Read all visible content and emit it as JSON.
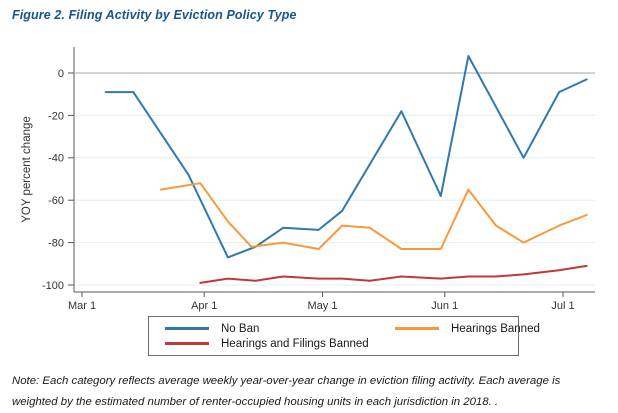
{
  "figure": {
    "title": "Figure 2. Filing Activity by Eviction Policy Type",
    "note": "Note: Each category reflects average weekly year-over-year change in eviction filing activity. Each average is weighted by the estimated number of renter-occupied housing units in each jurisdiction in 2018. ."
  },
  "chart_data": {
    "type": "line",
    "title": "Figure 2. Filing Activity by Eviction Policy Type",
    "xlabel": "",
    "ylabel": "YOY percent change",
    "ylim": [
      -100,
      10
    ],
    "grid": true,
    "legend_position": "bottom",
    "title_color": "#16558f",
    "colors": {
      "gridline": "#e3edf0",
      "zero_line": "#a6a6a6",
      "axis": "#5a5a5a",
      "tick_text": "#333333"
    },
    "yticks": [
      0,
      -20,
      -40,
      -60,
      -80,
      -100
    ],
    "xticks": [
      {
        "label": "Mar 1",
        "day": 0
      },
      {
        "label": "Apr 1",
        "day": 31
      },
      {
        "label": "May 1",
        "day": 61
      },
      {
        "label": "Jun 1",
        "day": 92
      },
      {
        "label": "Jul 1",
        "day": 122
      }
    ],
    "series": [
      {
        "name": "No Ban",
        "color": "#3178b0",
        "points": [
          {
            "date": "Mar 7",
            "day": 6,
            "value": -9
          },
          {
            "date": "Mar 14",
            "day": 13,
            "value": -9
          },
          {
            "date": "Mar 28",
            "day": 27,
            "value": -48
          },
          {
            "date": "Apr 7",
            "day": 37,
            "value": -87
          },
          {
            "date": "Apr 14",
            "day": 44,
            "value": -82
          },
          {
            "date": "Apr 21",
            "day": 51,
            "value": -73
          },
          {
            "date": "Apr 30",
            "day": 60,
            "value": -74
          },
          {
            "date": "May 6",
            "day": 66,
            "value": -65
          },
          {
            "date": "May 21",
            "day": 81,
            "value": -18
          },
          {
            "date": "May 31",
            "day": 91,
            "value": -58
          },
          {
            "date": "Jun 7",
            "day": 98,
            "value": 8
          },
          {
            "date": "Jun 21",
            "day": 112,
            "value": -40
          },
          {
            "date": "Jun 30",
            "day": 121,
            "value": -9
          },
          {
            "date": "Jul 7",
            "day": 128,
            "value": -3
          }
        ]
      },
      {
        "name": "Hearings Banned",
        "color": "#f8993a",
        "points": [
          {
            "date": "Mar 21",
            "day": 20,
            "value": -55
          },
          {
            "date": "Mar 31",
            "day": 30,
            "value": -52
          },
          {
            "date": "Apr 7",
            "day": 37,
            "value": -70
          },
          {
            "date": "Apr 13",
            "day": 43,
            "value": -82
          },
          {
            "date": "Apr 21",
            "day": 51,
            "value": -80
          },
          {
            "date": "Apr 30",
            "day": 60,
            "value": -83
          },
          {
            "date": "May 6",
            "day": 66,
            "value": -72
          },
          {
            "date": "May 13",
            "day": 73,
            "value": -73
          },
          {
            "date": "May 21",
            "day": 81,
            "value": -83
          },
          {
            "date": "May 31",
            "day": 91,
            "value": -83
          },
          {
            "date": "Jun 7",
            "day": 98,
            "value": -55
          },
          {
            "date": "Jun 14",
            "day": 105,
            "value": -72
          },
          {
            "date": "Jun 21",
            "day": 112,
            "value": -80
          },
          {
            "date": "Jun 30",
            "day": 121,
            "value": -72
          },
          {
            "date": "Jul 7",
            "day": 128,
            "value": -67
          }
        ]
      },
      {
        "name": "Hearings and Filings Banned",
        "color": "#bf3a36",
        "points": [
          {
            "date": "Mar 31",
            "day": 30,
            "value": -99
          },
          {
            "date": "Apr 7",
            "day": 37,
            "value": -97
          },
          {
            "date": "Apr 14",
            "day": 44,
            "value": -98
          },
          {
            "date": "Apr 21",
            "day": 51,
            "value": -96
          },
          {
            "date": "Apr 30",
            "day": 60,
            "value": -97
          },
          {
            "date": "May 6",
            "day": 66,
            "value": -97
          },
          {
            "date": "May 13",
            "day": 73,
            "value": -98
          },
          {
            "date": "May 21",
            "day": 81,
            "value": -96
          },
          {
            "date": "May 31",
            "day": 91,
            "value": -97
          },
          {
            "date": "Jun 7",
            "day": 98,
            "value": -96
          },
          {
            "date": "Jun 14",
            "day": 105,
            "value": -96
          },
          {
            "date": "Jun 21",
            "day": 112,
            "value": -95
          },
          {
            "date": "Jun 30",
            "day": 121,
            "value": -93
          },
          {
            "date": "Jul 7",
            "day": 128,
            "value": -91
          }
        ]
      }
    ]
  }
}
